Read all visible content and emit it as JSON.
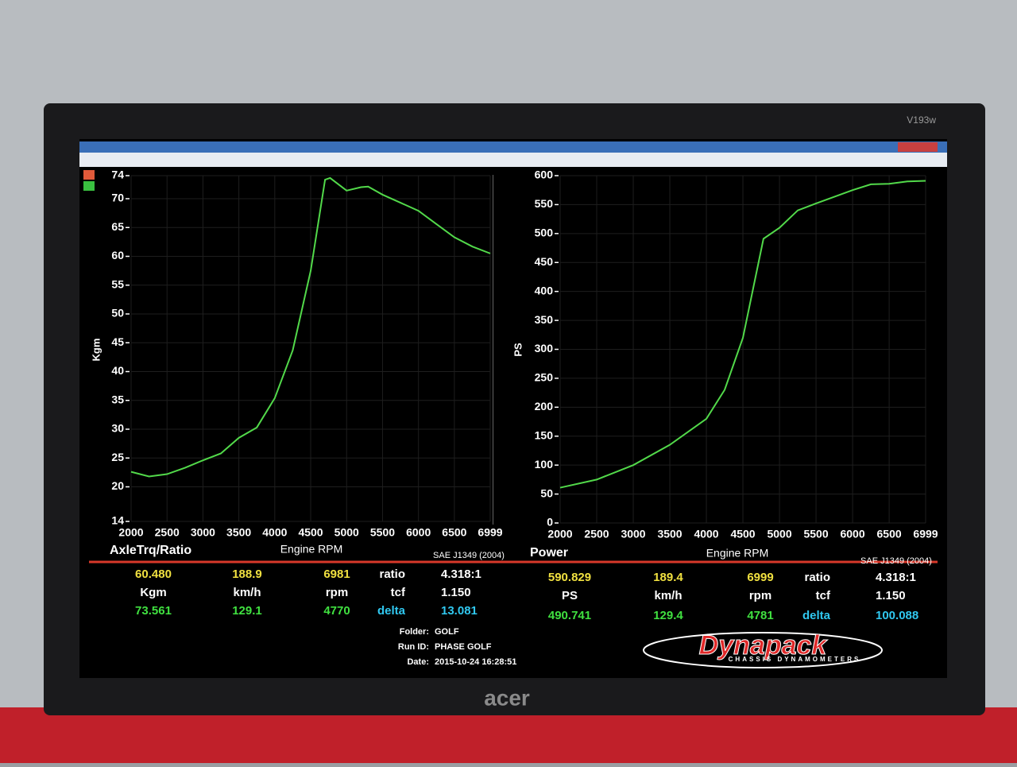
{
  "monitor": {
    "model": "V193w",
    "brand": "acer"
  },
  "chart_data": [
    {
      "type": "line",
      "title": "AxleTrq/Ratio",
      "x_label": "Engine RPM",
      "y_label": "Kgm",
      "note": "SAE J1349 (2004)",
      "x": [
        2000,
        2250,
        2500,
        2750,
        3000,
        3250,
        3500,
        3750,
        4000,
        4250,
        4500,
        4700,
        4770,
        5000,
        5200,
        5300,
        5500,
        5750,
        6000,
        6250,
        6500,
        6750,
        6999
      ],
      "series": [
        {
          "name": "AxleTrq/Ratio",
          "color": "#52d94a",
          "values": [
            22.6,
            21.8,
            22.2,
            23.3,
            24.6,
            25.8,
            28.5,
            30.3,
            35.4,
            43.7,
            57.5,
            73.3,
            73.6,
            71.4,
            72.0,
            72.1,
            70.7,
            69.3,
            67.9,
            65.6,
            63.3,
            61.7,
            60.5
          ]
        }
      ],
      "xlim": [
        2000,
        6999
      ],
      "xticks": [
        2000,
        2500,
        3000,
        3500,
        4000,
        4500,
        5000,
        5500,
        6000,
        6500,
        6999
      ],
      "ylim": [
        14,
        74
      ],
      "yticks": [
        14,
        20,
        25,
        30,
        35,
        40,
        45,
        50,
        55,
        60,
        65,
        70,
        74
      ],
      "grid": true
    },
    {
      "type": "line",
      "title": "Power",
      "x_label": "Engine RPM",
      "y_label": "PS",
      "note": "SAE J1349 (2004)",
      "x": [
        2000,
        2500,
        3000,
        3500,
        4000,
        4250,
        4500,
        4781,
        5000,
        5250,
        5500,
        6000,
        6250,
        6500,
        6750,
        6999
      ],
      "series": [
        {
          "name": "Power",
          "color": "#52d94a",
          "values": [
            61,
            75,
            100,
            135,
            180,
            230,
            320,
            491,
            510,
            540,
            552,
            575,
            585,
            586,
            590,
            591
          ]
        }
      ],
      "xlim": [
        2000,
        6999
      ],
      "xticks": [
        2000,
        2500,
        3000,
        3500,
        4000,
        4500,
        5000,
        5500,
        6000,
        6500,
        6999
      ],
      "ylim": [
        0,
        600
      ],
      "yticks": [
        0,
        50,
        100,
        150,
        200,
        250,
        300,
        350,
        400,
        450,
        500,
        550,
        600
      ],
      "grid": true
    }
  ],
  "readouts": [
    {
      "rows": [
        [
          "60.480",
          "188.9",
          "6981",
          "ratio",
          "4.318:1"
        ],
        [
          "Kgm",
          "km/h",
          "rpm",
          "tcf",
          "1.150"
        ],
        [
          "73.561",
          "129.1",
          "4770",
          "delta",
          "13.081"
        ]
      ]
    },
    {
      "rows": [
        [
          "590.829",
          "189.4",
          "6999",
          "ratio",
          "4.318:1"
        ],
        [
          "PS",
          "km/h",
          "rpm",
          "tcf",
          "1.150"
        ],
        [
          "490.741",
          "129.4",
          "4781",
          "delta",
          "100.088"
        ]
      ]
    }
  ],
  "run_info": {
    "folder_label": "Folder:",
    "folder": "GOLF",
    "run_label": "Run ID:",
    "run": "PHASE GOLF",
    "date_label": "Date:",
    "date": "2015-10-24 16:28:51"
  },
  "logo": {
    "name": "Dynapack",
    "tagline": "CHASSIS DYNAMOMETERS"
  }
}
